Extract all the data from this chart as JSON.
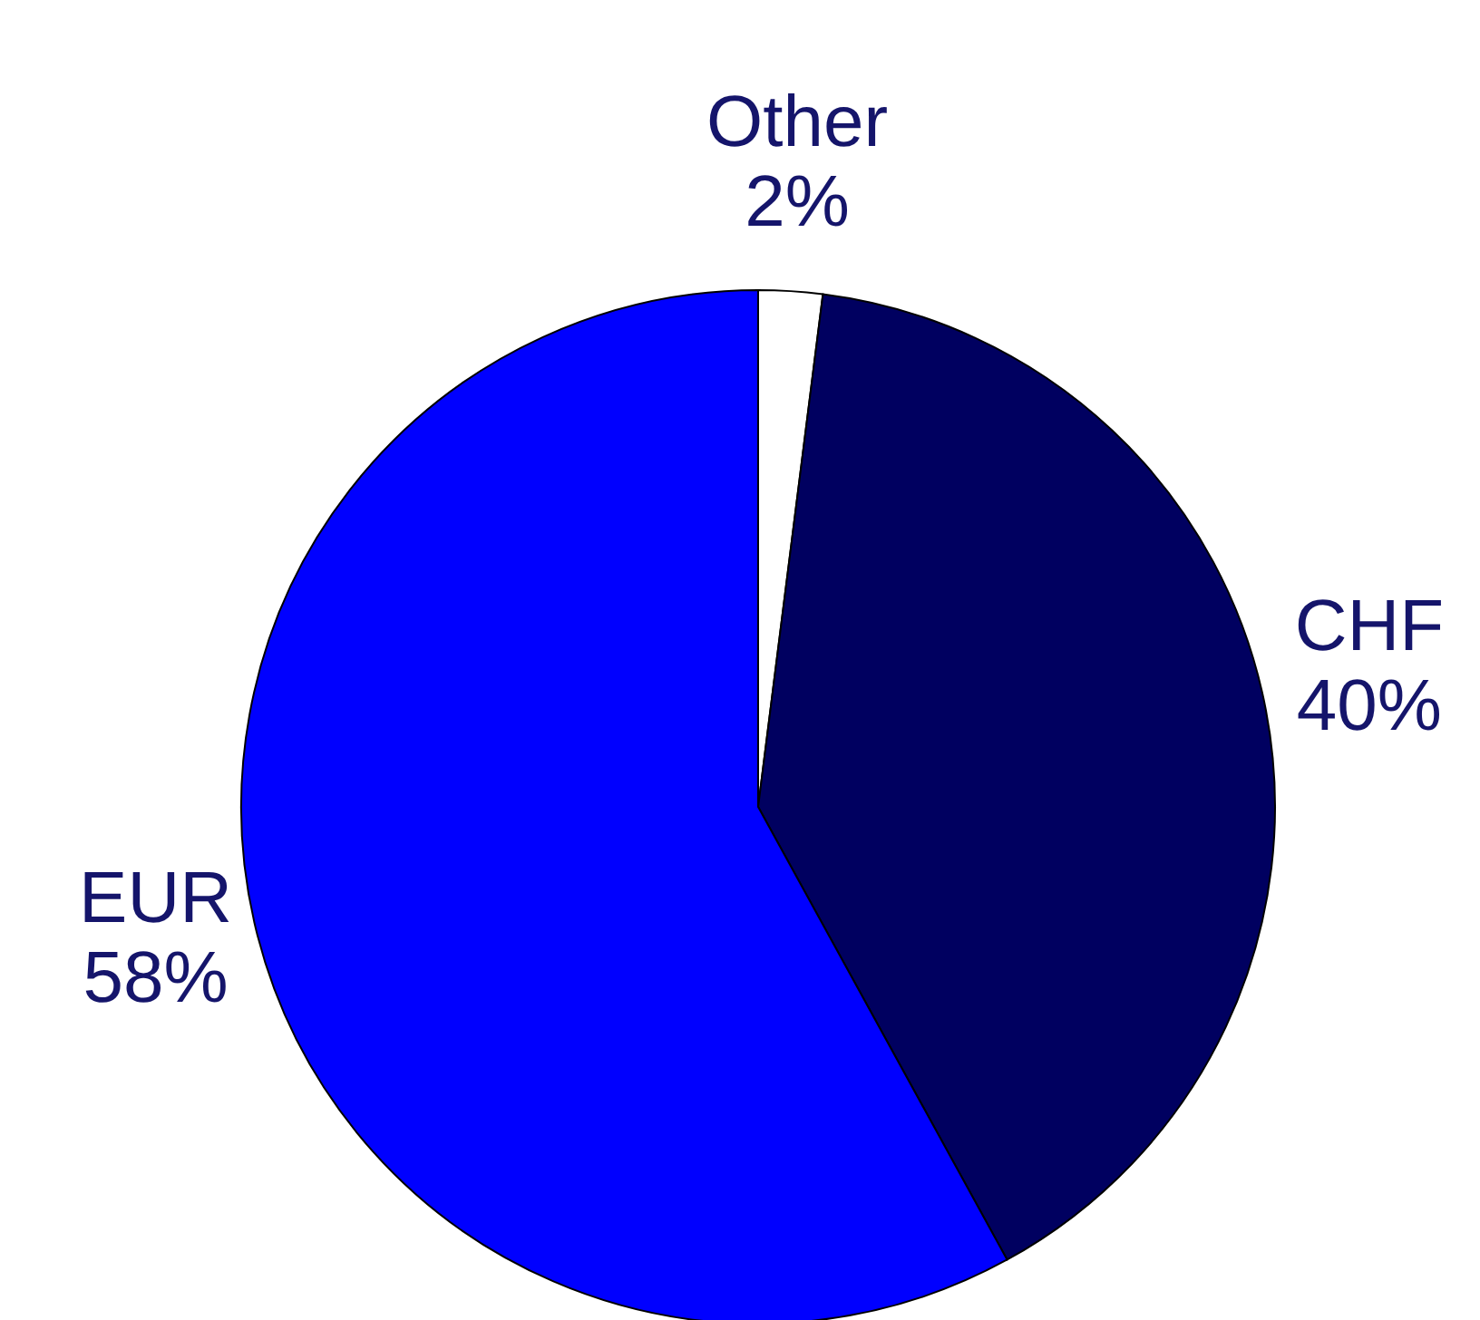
{
  "chart_data": {
    "type": "pie",
    "categories": [
      "Other",
      "CHF",
      "EUR"
    ],
    "values": [
      2,
      40,
      58
    ],
    "value_labels": [
      "2%",
      "40%",
      "58%"
    ],
    "colors": [
      "#ffffff",
      "#000060",
      "#0000ff"
    ]
  }
}
